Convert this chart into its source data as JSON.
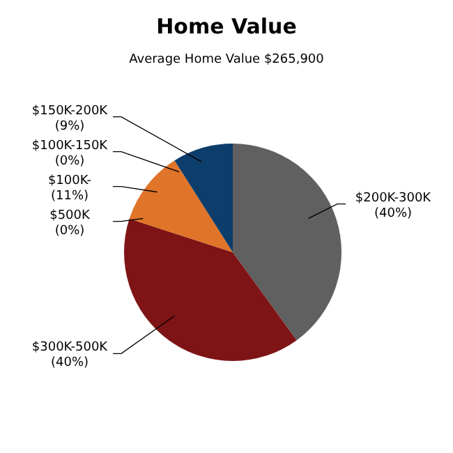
{
  "chart_data": {
    "type": "pie",
    "title": "Home Value",
    "subtitle": "Average Home Value  $265,900",
    "categories": [
      "$200K-300K",
      "$300K-500K",
      "$500K",
      "$100K-",
      "$100K-150K",
      "$150K-200K"
    ],
    "values": [
      40,
      40,
      0,
      11,
      0,
      9
    ],
    "value_labels": [
      "(40%)",
      "(40%)",
      "(0%)",
      "(11%)",
      "(0%)",
      "(9%)"
    ],
    "colors": [
      "#606060",
      "#7f1416",
      "#a02020",
      "#e07428",
      "#c05818",
      "#0d3d6b"
    ]
  }
}
